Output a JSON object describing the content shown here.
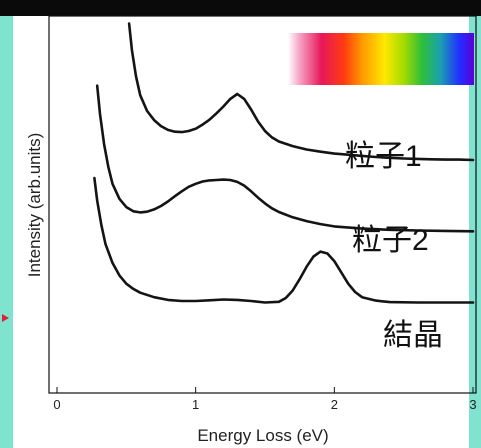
{
  "colors": {
    "frame": "#7fe3cf",
    "curve": "#141414",
    "marker": "#e0203a"
  },
  "chart_data": {
    "type": "line",
    "title": "",
    "xlabel": "Energy Loss (eV)",
    "ylabel": "Intensity (arb.units)",
    "xlim": [
      0,
      3
    ],
    "x_ticks": [
      "0",
      "1",
      "2",
      "3"
    ],
    "grid": false,
    "legend": "none",
    "labels": {
      "particle1": "粒子1",
      "particle2": "粒子2",
      "crystal": "結晶"
    },
    "series": [
      {
        "name": "粒子1",
        "x": [
          0.52,
          0.54,
          0.57,
          0.6,
          0.65,
          0.7,
          0.75,
          0.8,
          0.85,
          0.9,
          0.95,
          1.0,
          1.05,
          1.1,
          1.15,
          1.2,
          1.25,
          1.3,
          1.35,
          1.4,
          1.45,
          1.5,
          1.55,
          1.6,
          1.7,
          1.8,
          1.9,
          2.0,
          2.1,
          2.2,
          2.3,
          2.4,
          2.5,
          2.6,
          2.7,
          2.8,
          2.9,
          3.0
        ],
        "y": [
          0.98,
          0.91,
          0.84,
          0.79,
          0.748,
          0.724,
          0.708,
          0.698,
          0.693,
          0.692,
          0.695,
          0.701,
          0.712,
          0.725,
          0.742,
          0.76,
          0.78,
          0.793,
          0.78,
          0.752,
          0.72,
          0.695,
          0.678,
          0.667,
          0.655,
          0.646,
          0.64,
          0.635,
          0.632,
          0.629,
          0.626,
          0.624,
          0.622,
          0.621,
          0.62,
          0.619,
          0.619,
          0.618
        ]
      },
      {
        "name": "粒子2",
        "x": [
          0.29,
          0.31,
          0.34,
          0.37,
          0.4,
          0.45,
          0.5,
          0.55,
          0.6,
          0.65,
          0.7,
          0.75,
          0.8,
          0.85,
          0.9,
          0.95,
          1.0,
          1.05,
          1.1,
          1.15,
          1.2,
          1.25,
          1.3,
          1.35,
          1.4,
          1.45,
          1.5,
          1.55,
          1.6,
          1.7,
          1.8,
          1.9,
          2.0,
          2.2,
          2.4,
          2.6,
          2.8,
          3.0
        ],
        "y": [
          0.815,
          0.74,
          0.66,
          0.6,
          0.555,
          0.515,
          0.493,
          0.482,
          0.479,
          0.481,
          0.487,
          0.496,
          0.508,
          0.522,
          0.535,
          0.547,
          0.555,
          0.561,
          0.564,
          0.565,
          0.566,
          0.565,
          0.56,
          0.55,
          0.535,
          0.518,
          0.503,
          0.49,
          0.48,
          0.466,
          0.456,
          0.448,
          0.442,
          0.436,
          0.433,
          0.431,
          0.43,
          0.429
        ]
      },
      {
        "name": "結晶",
        "x": [
          0.27,
          0.29,
          0.32,
          0.35,
          0.4,
          0.45,
          0.5,
          0.55,
          0.6,
          0.7,
          0.8,
          0.9,
          1.0,
          1.1,
          1.2,
          1.3,
          1.4,
          1.5,
          1.6,
          1.65,
          1.7,
          1.75,
          1.8,
          1.85,
          1.9,
          1.95,
          2.0,
          2.05,
          2.1,
          2.15,
          2.2,
          2.3,
          2.4,
          2.6,
          2.8,
          3.0
        ],
        "y": [
          0.57,
          0.51,
          0.445,
          0.395,
          0.345,
          0.312,
          0.29,
          0.276,
          0.266,
          0.254,
          0.247,
          0.244,
          0.244,
          0.246,
          0.248,
          0.247,
          0.244,
          0.24,
          0.242,
          0.252,
          0.272,
          0.302,
          0.335,
          0.362,
          0.375,
          0.37,
          0.35,
          0.32,
          0.29,
          0.268,
          0.254,
          0.245,
          0.241,
          0.24,
          0.24,
          0.24
        ]
      }
    ]
  }
}
